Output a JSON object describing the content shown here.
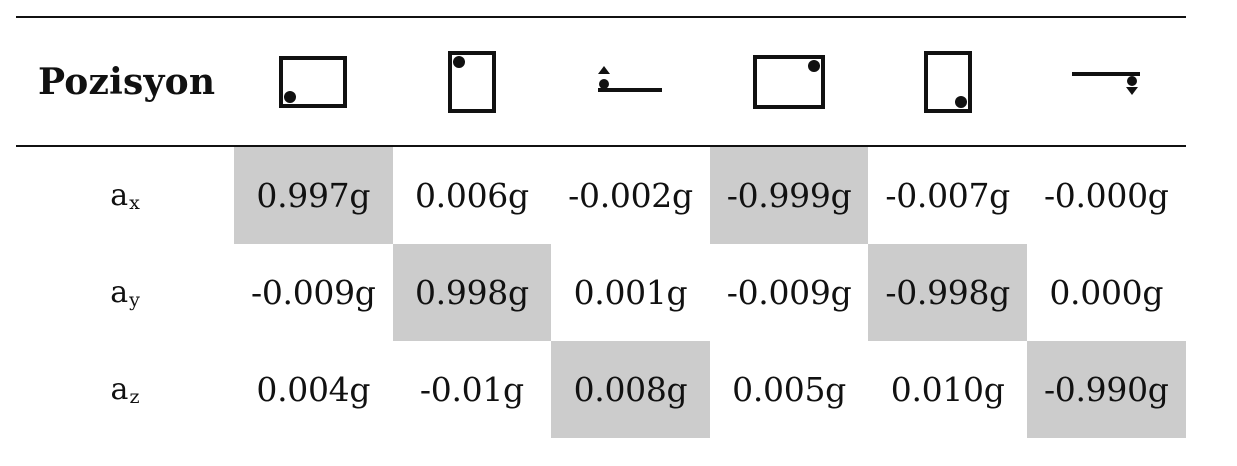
{
  "table": {
    "header_label": "Pozisyon",
    "position_icons": [
      "landscape-rectangle-dot-bottom-left-icon",
      "portrait-rectangle-dot-top-left-icon",
      "flat-line-dot-top-left-icon",
      "landscape-rectangle-dot-top-right-icon",
      "portrait-rectangle-dot-bottom-right-icon",
      "flat-line-dot-bottom-right-icon"
    ],
    "highlight_color": "#cccccc",
    "rows": [
      {
        "label": "a",
        "label_sub": "x",
        "values": [
          "0.997g",
          "0.006g",
          "-0.002g",
          "-0.999g",
          "-0.007g",
          "-0.000g"
        ],
        "highlighted": [
          true,
          false,
          false,
          true,
          false,
          false
        ]
      },
      {
        "label": "a",
        "label_sub": "y",
        "values": [
          "-0.009g",
          "0.998g",
          "0.001g",
          "-0.009g",
          "-0.998g",
          "0.000g"
        ],
        "highlighted": [
          false,
          true,
          false,
          false,
          true,
          false
        ]
      },
      {
        "label": "a",
        "label_sub": "z",
        "values": [
          "0.004g",
          "-0.01g",
          "0.008g",
          "0.005g",
          "0.010g",
          "-0.990g"
        ],
        "highlighted": [
          false,
          false,
          true,
          false,
          false,
          true
        ]
      }
    ]
  }
}
